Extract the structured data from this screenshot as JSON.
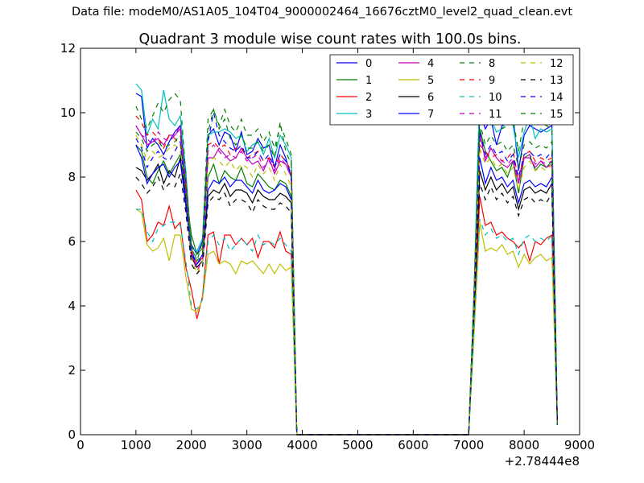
{
  "suptitle": "Data file: modeM0/AS1A05_104T04_9000002464_16676cztM0_level2_quad_clean.evt",
  "chart_data": {
    "type": "line",
    "title": "Quadrant 3 module wise count rates with 100.0s bins.",
    "xlabel": "",
    "ylabel": "",
    "xlim": [
      0,
      9000
    ],
    "ylim": [
      0,
      12
    ],
    "xticks": [
      "0",
      "1000",
      "2000",
      "3000",
      "4000",
      "5000",
      "6000",
      "7000",
      "8000",
      "9000"
    ],
    "yticks": [
      "0",
      "2",
      "4",
      "6",
      "8",
      "10",
      "12"
    ],
    "offset_text": "+2.78444e8",
    "grid": false,
    "legend_position": "upper right",
    "legend_columns": 4,
    "x": [
      1000,
      1100,
      1200,
      1300,
      1400,
      1500,
      1600,
      1700,
      1800,
      1900,
      2000,
      2100,
      2200,
      2300,
      2400,
      2500,
      2600,
      2700,
      2800,
      2900,
      3000,
      3100,
      3200,
      3300,
      3400,
      3500,
      3600,
      3700,
      3800,
      3900,
      4000,
      7000,
      7100,
      7200,
      7300,
      7400,
      7500,
      7600,
      7700,
      7800,
      7900,
      8000,
      8100,
      8200,
      8300,
      8400,
      8500,
      8600
    ],
    "series": [
      {
        "name": "0",
        "color": "#0000ff",
        "dash": "solid",
        "values": [
          10.6,
          10.5,
          8.9,
          9.2,
          9.0,
          8.7,
          9.1,
          9.4,
          9.6,
          7.8,
          5.9,
          5.6,
          6.0,
          9.3,
          9.5,
          9.0,
          9.4,
          9.3,
          8.8,
          9.4,
          8.7,
          8.8,
          9.2,
          8.9,
          9.0,
          8.3,
          9.0,
          8.6,
          8.0,
          0.0,
          0.0,
          0.0,
          4.5,
          10.0,
          9.5,
          9.8,
          9.0,
          9.6,
          9.7,
          9.9,
          8.2,
          9.3,
          9.6,
          9.5,
          9.4,
          9.5,
          9.6,
          0.3
        ]
      },
      {
        "name": "1",
        "color": "#008000",
        "dash": "solid",
        "values": [
          9.0,
          8.8,
          8.0,
          7.8,
          8.2,
          8.5,
          8.1,
          8.4,
          8.7,
          7.5,
          6.2,
          5.6,
          5.8,
          8.0,
          8.4,
          7.8,
          8.2,
          8.0,
          7.9,
          8.3,
          7.8,
          7.7,
          8.1,
          7.9,
          7.7,
          7.6,
          7.9,
          7.8,
          7.4,
          0.0,
          0.0,
          0.0,
          4.0,
          9.5,
          8.8,
          8.5,
          8.2,
          8.3,
          8.0,
          8.5,
          7.5,
          8.6,
          8.7,
          8.2,
          8.4,
          8.3,
          8.5,
          0.3
        ]
      },
      {
        "name": "2",
        "color": "#ff0000",
        "dash": "solid",
        "values": [
          7.6,
          7.3,
          6.0,
          6.2,
          6.6,
          6.5,
          7.1,
          6.4,
          6.6,
          5.2,
          4.5,
          3.6,
          4.3,
          6.2,
          6.3,
          5.3,
          6.2,
          6.2,
          5.9,
          6.1,
          5.9,
          6.1,
          5.5,
          6.0,
          6.0,
          5.8,
          6.3,
          5.7,
          5.6,
          0.0,
          0.0,
          0.0,
          3.6,
          7.4,
          6.5,
          6.6,
          6.2,
          6.3,
          6.1,
          6.0,
          5.8,
          6.0,
          5.4,
          6.0,
          5.9,
          6.1,
          6.2,
          0.3
        ]
      },
      {
        "name": "3",
        "color": "#00bfbf",
        "dash": "solid",
        "values": [
          10.9,
          10.7,
          9.3,
          9.8,
          9.5,
          10.7,
          9.8,
          9.6,
          9.9,
          8.2,
          5.8,
          5.7,
          6.1,
          9.3,
          9.4,
          9.4,
          9.5,
          9.4,
          9.2,
          9.3,
          8.8,
          9.0,
          9.1,
          8.7,
          9.2,
          8.6,
          9.3,
          9.0,
          8.6,
          0.0,
          0.0,
          0.0,
          4.7,
          10.8,
          9.7,
          9.8,
          9.4,
          9.5,
          9.8,
          9.6,
          8.6,
          9.4,
          9.9,
          9.2,
          9.5,
          9.4,
          9.5,
          0.3
        ]
      },
      {
        "name": "4",
        "color": "#bf00bf",
        "dash": "solid",
        "values": [
          9.6,
          9.3,
          9.0,
          9.1,
          9.2,
          9.0,
          9.3,
          9.3,
          9.5,
          7.6,
          5.6,
          5.2,
          5.4,
          8.6,
          8.6,
          8.9,
          8.7,
          8.5,
          8.6,
          8.9,
          8.6,
          8.4,
          8.5,
          8.2,
          8.6,
          8.1,
          8.5,
          8.4,
          8.0,
          0.0,
          0.0,
          0.0,
          4.3,
          9.4,
          8.5,
          8.9,
          8.6,
          8.4,
          8.3,
          8.5,
          7.8,
          8.6,
          8.6,
          8.3,
          8.5,
          8.3,
          8.4,
          0.3
        ]
      },
      {
        "name": "5",
        "color": "#bfbf00",
        "dash": "solid",
        "values": [
          7.0,
          6.9,
          5.9,
          5.7,
          5.8,
          6.1,
          5.4,
          6.2,
          6.2,
          4.9,
          3.9,
          3.8,
          4.2,
          5.6,
          5.7,
          5.3,
          5.4,
          5.3,
          5.0,
          5.4,
          5.3,
          5.4,
          5.2,
          5.0,
          5.3,
          5.0,
          5.3,
          5.1,
          5.2,
          0.0,
          0.0,
          0.0,
          3.2,
          6.6,
          5.7,
          5.8,
          5.7,
          5.9,
          5.6,
          5.7,
          5.2,
          5.6,
          5.3,
          5.5,
          5.6,
          5.4,
          5.5,
          0.3
        ]
      },
      {
        "name": "6",
        "color": "#000000",
        "dash": "solid",
        "values": [
          8.3,
          8.2,
          7.9,
          8.1,
          8.4,
          7.8,
          8.2,
          8.0,
          8.6,
          7.3,
          5.5,
          5.2,
          5.4,
          7.4,
          7.6,
          7.5,
          7.8,
          7.4,
          7.6,
          7.6,
          7.5,
          7.2,
          7.6,
          7.4,
          7.3,
          7.3,
          7.5,
          7.4,
          7.2,
          0.0,
          0.0,
          0.0,
          4.0,
          8.2,
          7.6,
          8.0,
          7.6,
          7.8,
          7.5,
          7.7,
          7.0,
          7.6,
          7.7,
          7.5,
          7.6,
          7.5,
          7.8,
          0.3
        ]
      },
      {
        "name": "7",
        "color": "#0000ff",
        "dash": "solid",
        "values": [
          9.0,
          8.6,
          7.8,
          8.1,
          8.3,
          8.4,
          8.0,
          8.3,
          8.5,
          7.1,
          5.7,
          5.3,
          5.6,
          7.6,
          7.9,
          7.8,
          8.0,
          7.7,
          7.9,
          7.9,
          7.7,
          7.5,
          7.9,
          7.6,
          7.5,
          7.6,
          7.8,
          7.7,
          7.3,
          0.0,
          0.0,
          0.0,
          4.2,
          8.6,
          7.8,
          8.3,
          7.9,
          8.0,
          7.7,
          7.9,
          7.2,
          7.8,
          7.9,
          7.7,
          7.8,
          7.7,
          8.0,
          0.3
        ]
      },
      {
        "name": "8",
        "color": "#008000",
        "dash": "dashed",
        "values": [
          10.2,
          9.8,
          9.5,
          9.9,
          10.3,
          10.0,
          10.4,
          10.6,
          10.4,
          8.0,
          5.9,
          5.4,
          6.0,
          9.8,
          10.1,
          9.6,
          10.1,
          9.6,
          9.4,
          9.8,
          9.3,
          9.3,
          9.5,
          9.1,
          9.4,
          8.9,
          9.6,
          9.2,
          8.7,
          0.0,
          0.0,
          0.0,
          4.6,
          10.2,
          9.9,
          9.6,
          9.7,
          9.5,
          9.6,
          9.8,
          8.8,
          9.8,
          9.9,
          9.7,
          9.7,
          9.6,
          9.5,
          0.3
        ]
      },
      {
        "name": "9",
        "color": "#ff0000",
        "dash": "dashed",
        "values": [
          9.9,
          9.7,
          9.3,
          9.4,
          9.2,
          8.9,
          9.3,
          9.2,
          9.0,
          7.8,
          5.7,
          5.3,
          5.5,
          9.0,
          9.1,
          8.9,
          9.0,
          8.7,
          8.9,
          8.9,
          8.6,
          8.7,
          8.8,
          8.5,
          8.6,
          8.3,
          8.7,
          8.5,
          8.2,
          0.0,
          0.0,
          0.0,
          4.4,
          9.0,
          8.8,
          8.6,
          8.7,
          8.5,
          8.6,
          8.8,
          7.9,
          8.7,
          8.8,
          8.5,
          8.6,
          8.5,
          8.6,
          0.3
        ]
      },
      {
        "name": "10",
        "color": "#00bfbf",
        "dash": "dashed",
        "values": [
          7.0,
          7.0,
          6.3,
          6.0,
          6.4,
          6.5,
          6.6,
          6.6,
          6.5,
          5.4,
          4.0,
          3.9,
          4.2,
          6.0,
          6.2,
          5.9,
          6.1,
          5.7,
          5.9,
          6.1,
          5.9,
          5.7,
          6.2,
          5.9,
          6.0,
          5.9,
          6.1,
          5.9,
          5.7,
          0.0,
          0.0,
          0.0,
          3.4,
          6.7,
          6.2,
          6.4,
          6.1,
          6.2,
          6.0,
          6.1,
          5.6,
          6.1,
          6.2,
          6.0,
          6.1,
          6.0,
          6.2,
          0.3
        ]
      },
      {
        "name": "11",
        "color": "#bf00bf",
        "dash": "dashed",
        "values": [
          9.6,
          9.3,
          9.2,
          9.0,
          9.4,
          9.2,
          9.1,
          9.3,
          9.6,
          7.6,
          5.6,
          5.1,
          5.4,
          8.8,
          9.0,
          8.8,
          8.6,
          8.7,
          8.6,
          8.8,
          8.5,
          8.6,
          8.7,
          8.3,
          8.5,
          8.2,
          8.6,
          8.4,
          8.0,
          0.0,
          0.0,
          0.0,
          4.3,
          9.2,
          8.6,
          8.9,
          8.6,
          8.5,
          8.4,
          8.6,
          7.9,
          8.6,
          8.7,
          8.4,
          8.5,
          8.4,
          8.5,
          0.3
        ]
      },
      {
        "name": "12",
        "color": "#bfbf00",
        "dash": "dashed",
        "values": [
          9.3,
          9.0,
          8.5,
          8.8,
          8.6,
          8.7,
          8.9,
          9.0,
          8.8,
          7.4,
          5.5,
          5.0,
          5.4,
          8.4,
          8.6,
          8.5,
          8.3,
          8.5,
          8.2,
          8.4,
          8.3,
          8.0,
          8.4,
          8.1,
          8.3,
          7.9,
          8.4,
          8.1,
          7.7,
          0.0,
          0.0,
          0.0,
          4.2,
          8.9,
          8.4,
          8.6,
          8.3,
          8.4,
          8.1,
          8.3,
          7.6,
          8.3,
          8.5,
          8.2,
          8.3,
          8.2,
          8.4,
          0.3
        ]
      },
      {
        "name": "13",
        "color": "#000000",
        "dash": "dashed",
        "values": [
          8.0,
          7.8,
          7.5,
          7.7,
          8.0,
          7.6,
          7.8,
          7.7,
          8.1,
          6.9,
          5.3,
          5.0,
          5.2,
          7.2,
          7.4,
          7.3,
          7.5,
          7.1,
          7.3,
          7.3,
          7.2,
          6.9,
          7.3,
          7.1,
          7.0,
          7.0,
          7.2,
          7.1,
          6.9,
          0.0,
          0.0,
          0.0,
          3.9,
          7.8,
          7.3,
          7.7,
          7.3,
          7.5,
          7.2,
          7.4,
          6.8,
          7.3,
          7.4,
          7.2,
          7.3,
          7.2,
          7.5,
          0.3
        ]
      },
      {
        "name": "14",
        "color": "#0000ff",
        "dash": "dashed",
        "values": [
          9.2,
          8.9,
          8.3,
          8.6,
          8.8,
          8.6,
          8.5,
          8.8,
          9.1,
          7.3,
          5.6,
          5.3,
          5.5,
          9.1,
          10.0,
          9.3,
          9.1,
          8.9,
          8.8,
          9.0,
          8.6,
          8.6,
          8.8,
          8.5,
          8.7,
          8.3,
          8.7,
          8.5,
          8.1,
          0.0,
          0.0,
          0.0,
          4.4,
          9.4,
          8.7,
          9.0,
          8.7,
          8.8,
          8.5,
          8.7,
          8.0,
          8.7,
          8.8,
          8.6,
          8.7,
          8.6,
          8.8,
          0.3
        ]
      },
      {
        "name": "15",
        "color": "#008000",
        "dash": "dashed",
        "values": [
          9.4,
          9.2,
          8.8,
          9.0,
          9.1,
          8.9,
          9.0,
          9.1,
          9.3,
          7.5,
          5.8,
          5.4,
          5.6,
          9.4,
          10.1,
          9.5,
          9.8,
          9.2,
          9.0,
          9.3,
          8.9,
          8.9,
          9.1,
          8.8,
          9.0,
          8.6,
          9.7,
          8.8,
          8.4,
          0.0,
          0.0,
          0.0,
          4.5,
          9.7,
          9.0,
          9.3,
          9.0,
          9.1,
          8.8,
          9.0,
          8.3,
          9.0,
          9.1,
          8.9,
          9.0,
          8.9,
          9.1,
          0.3
        ]
      }
    ]
  }
}
